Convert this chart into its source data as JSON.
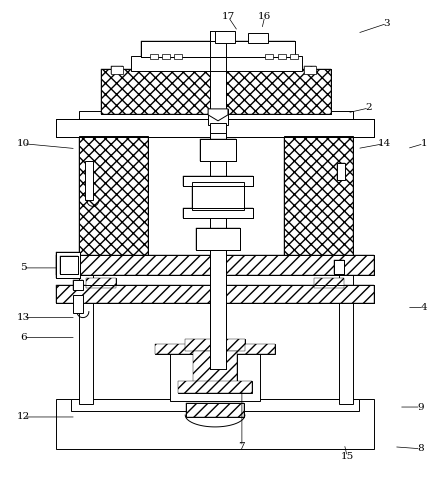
{
  "background_color": "#ffffff",
  "line_color": "#000000",
  "figsize": [
    4.48,
    5.03
  ],
  "dpi": 100,
  "label_data": [
    [
      "1",
      408,
      148,
      425,
      143
    ],
    [
      "2",
      348,
      112,
      370,
      107
    ],
    [
      "3",
      358,
      32,
      388,
      22
    ],
    [
      "4",
      408,
      308,
      425,
      308
    ],
    [
      "5",
      75,
      268,
      22,
      268
    ],
    [
      "6",
      75,
      338,
      22,
      338
    ],
    [
      "7",
      242,
      390,
      242,
      448
    ],
    [
      "8",
      395,
      448,
      422,
      450
    ],
    [
      "9",
      400,
      408,
      422,
      408
    ],
    [
      "10",
      75,
      148,
      22,
      143
    ],
    [
      "12",
      75,
      418,
      22,
      418
    ],
    [
      "13",
      75,
      318,
      22,
      318
    ],
    [
      "14",
      358,
      148,
      385,
      143
    ],
    [
      "15",
      345,
      445,
      348,
      458
    ],
    [
      "16",
      262,
      28,
      265,
      15
    ],
    [
      "17",
      238,
      30,
      228,
      15
    ]
  ]
}
